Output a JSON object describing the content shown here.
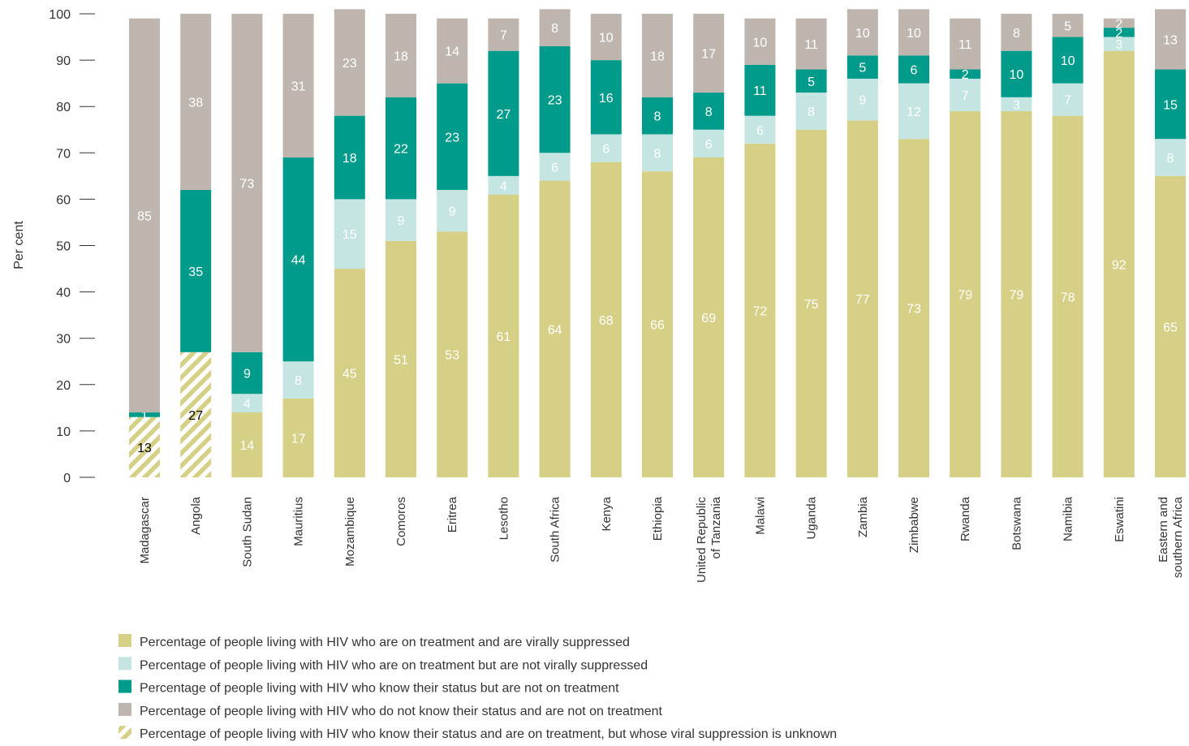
{
  "chart_data": {
    "type": "bar",
    "stacked": true,
    "ylabel": "Per cent",
    "ylim": [
      0,
      100
    ],
    "yticks": [
      0,
      10,
      20,
      30,
      40,
      50,
      60,
      70,
      80,
      90,
      100
    ],
    "grid": false,
    "legend_position": "bottom-left",
    "categories": [
      [
        "Madagascar"
      ],
      [
        "Angola"
      ],
      [
        "South Sudan"
      ],
      [
        "Mauritius"
      ],
      [
        "Mozambique"
      ],
      [
        "Comoros"
      ],
      [
        "Eritrea"
      ],
      [
        "Lesotho"
      ],
      [
        "South Africa"
      ],
      [
        "Kenya"
      ],
      [
        "Ethiopia"
      ],
      [
        "United Republic",
        "of Tanzania"
      ],
      [
        "Malawi"
      ],
      [
        "Uganda"
      ],
      [
        "Zambia"
      ],
      [
        "Zimbabwe"
      ],
      [
        "Rwanda"
      ],
      [
        "Botswana"
      ],
      [
        "Namibia"
      ],
      [
        "Eswatini"
      ],
      [
        "Eastern and",
        "southern Africa"
      ]
    ],
    "series": [
      {
        "key": "unknown_vs",
        "name": "Percentage of people living with HIV who know their status and are on treatment, but whose viral suppression is unknown",
        "color": "#d6cf86",
        "pattern": "hatch",
        "label_color": "#000000",
        "values": [
          13,
          27,
          null,
          null,
          null,
          null,
          null,
          null,
          null,
          null,
          null,
          null,
          null,
          null,
          null,
          null,
          null,
          null,
          null,
          null,
          null
        ]
      },
      {
        "key": "suppressed",
        "name": "Percentage of people living with HIV who are on treatment and are virally suppressed",
        "color": "#d6cf86",
        "label_color": "#ffffff",
        "values": [
          null,
          null,
          14,
          17,
          45,
          51,
          53,
          61,
          64,
          68,
          66,
          69,
          72,
          75,
          77,
          73,
          79,
          79,
          78,
          92,
          65
        ]
      },
      {
        "key": "not_suppressed",
        "name": "Percentage of people living with HIV who are on treatment but are not virally suppressed",
        "color": "#c4e5e1",
        "label_color": "#ffffff",
        "values": [
          null,
          null,
          4,
          8,
          15,
          9,
          9,
          4,
          6,
          6,
          8,
          6,
          6,
          8,
          9,
          12,
          7,
          3,
          7,
          3,
          8
        ]
      },
      {
        "key": "not_on_treatment",
        "name": "Percentage of people living with HIV who know their status but are not on treatment",
        "color": "#009b8a",
        "label_color": "#ffffff",
        "values": [
          1,
          35,
          9,
          44,
          18,
          22,
          23,
          27,
          23,
          16,
          8,
          8,
          11,
          5,
          5,
          6,
          2,
          10,
          10,
          2,
          15
        ]
      },
      {
        "key": "unaware",
        "name": "Percentage of people living with HIV who do not know their status and are not on treatment",
        "color": "#bfb5af",
        "label_color": "#ffffff",
        "values": [
          85,
          38,
          73,
          31,
          23,
          18,
          14,
          7,
          8,
          10,
          18,
          17,
          10,
          11,
          10,
          10,
          11,
          8,
          5,
          2,
          13
        ]
      }
    ],
    "legend_order": [
      "suppressed",
      "not_suppressed",
      "not_on_treatment",
      "unaware",
      "unknown_vs"
    ]
  }
}
